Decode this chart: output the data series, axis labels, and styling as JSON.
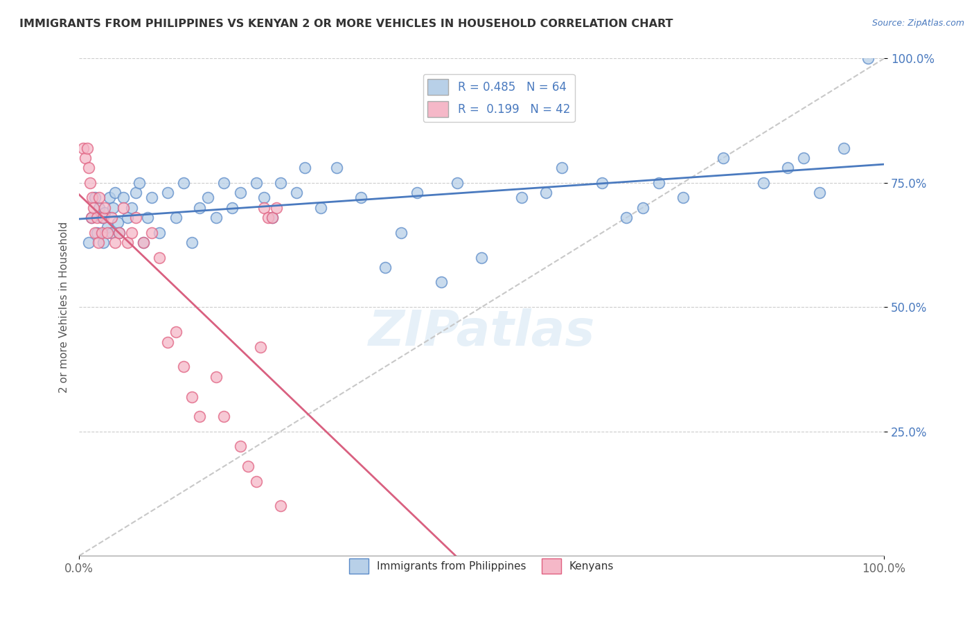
{
  "title": "IMMIGRANTS FROM PHILIPPINES VS KENYAN 2 OR MORE VEHICLES IN HOUSEHOLD CORRELATION CHART",
  "source": "Source: ZipAtlas.com",
  "ylabel": "2 or more Vehicles in Household",
  "r_blue": 0.485,
  "n_blue": 64,
  "r_pink": 0.199,
  "n_pink": 42,
  "color_blue": "#b8d0e8",
  "color_pink": "#f5b8c8",
  "edge_blue": "#5a8ac8",
  "edge_pink": "#e06080",
  "line_blue": "#4a7abf",
  "line_pink": "#d96080",
  "line_dash": "#c8c8c8",
  "background": "#ffffff",
  "grid_color": "#cccccc",
  "title_color": "#333333",
  "ytick_color": "#4a7abf",
  "source_color": "#4a7abf",
  "xlim": [
    0.0,
    100.0
  ],
  "ylim": [
    0.0,
    100.0
  ],
  "yticks": [
    25.0,
    50.0,
    75.0,
    100.0
  ],
  "xticks": [
    0.0,
    100.0
  ],
  "xtick_labels": [
    "0.0%",
    "100.0%"
  ],
  "ytick_labels": [
    "25.0%",
    "50.0%",
    "75.0%",
    "100.0%"
  ],
  "blue_x": [
    1.2,
    1.5,
    2.0,
    2.2,
    2.5,
    2.8,
    3.0,
    3.2,
    3.5,
    3.8,
    4.0,
    4.2,
    4.5,
    4.8,
    5.0,
    5.5,
    6.0,
    6.5,
    7.0,
    7.5,
    8.0,
    8.5,
    9.0,
    10.0,
    11.0,
    12.0,
    13.0,
    14.0,
    15.0,
    16.0,
    17.0,
    18.0,
    19.0,
    20.0,
    22.0,
    23.0,
    24.0,
    25.0,
    27.0,
    28.0,
    30.0,
    32.0,
    35.0,
    38.0,
    40.0,
    42.0,
    45.0,
    47.0,
    50.0,
    55.0,
    58.0,
    60.0,
    65.0,
    68.0,
    70.0,
    72.0,
    75.0,
    80.0,
    85.0,
    88.0,
    90.0,
    92.0,
    95.0,
    98.0
  ],
  "blue_y": [
    63.0,
    68.0,
    72.0,
    65.0,
    70.0,
    68.0,
    63.0,
    69.0,
    66.0,
    72.0,
    65.0,
    70.0,
    73.0,
    67.0,
    65.0,
    72.0,
    68.0,
    70.0,
    73.0,
    75.0,
    63.0,
    68.0,
    72.0,
    65.0,
    73.0,
    68.0,
    75.0,
    63.0,
    70.0,
    72.0,
    68.0,
    75.0,
    70.0,
    73.0,
    75.0,
    72.0,
    68.0,
    75.0,
    73.0,
    78.0,
    70.0,
    78.0,
    72.0,
    58.0,
    65.0,
    73.0,
    55.0,
    75.0,
    60.0,
    72.0,
    73.0,
    78.0,
    75.0,
    68.0,
    70.0,
    75.0,
    72.0,
    80.0,
    75.0,
    78.0,
    80.0,
    73.0,
    82.0,
    100.0
  ],
  "pink_x": [
    0.5,
    0.8,
    1.0,
    1.2,
    1.4,
    1.5,
    1.6,
    1.8,
    2.0,
    2.2,
    2.4,
    2.5,
    2.8,
    3.0,
    3.2,
    3.5,
    4.0,
    4.5,
    5.0,
    5.5,
    6.0,
    6.5,
    7.0,
    8.0,
    9.0,
    10.0,
    11.0,
    12.0,
    13.0,
    14.0,
    15.0,
    17.0,
    18.0,
    20.0,
    21.0,
    22.0,
    22.5,
    23.0,
    23.5,
    24.0,
    24.5,
    25.0
  ],
  "pink_y": [
    82.0,
    80.0,
    82.0,
    78.0,
    75.0,
    68.0,
    72.0,
    70.0,
    65.0,
    68.0,
    63.0,
    72.0,
    65.0,
    68.0,
    70.0,
    65.0,
    68.0,
    63.0,
    65.0,
    70.0,
    63.0,
    65.0,
    68.0,
    63.0,
    65.0,
    60.0,
    43.0,
    45.0,
    38.0,
    32.0,
    28.0,
    36.0,
    28.0,
    22.0,
    18.0,
    15.0,
    42.0,
    70.0,
    68.0,
    68.0,
    70.0,
    10.0
  ]
}
